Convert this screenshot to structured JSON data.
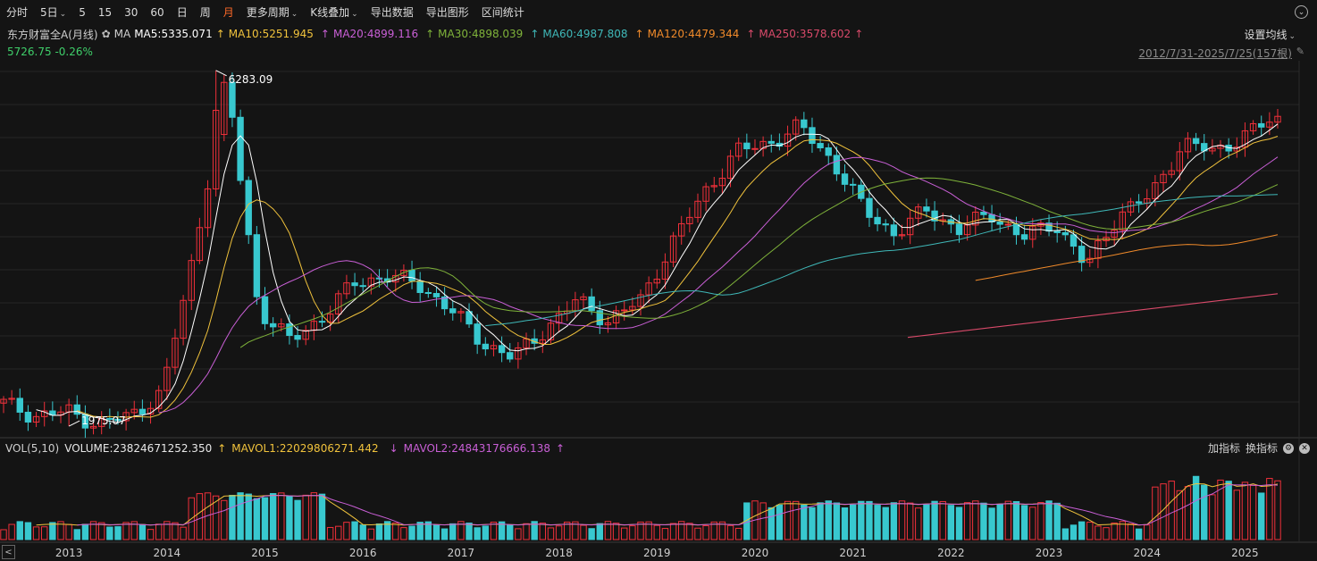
{
  "toolbar": {
    "items": [
      "分时",
      "5日",
      "5",
      "15",
      "30",
      "60",
      "日",
      "周",
      "月",
      "更多周期",
      "K线叠加",
      "导出数据",
      "导出图形",
      "区间统计"
    ],
    "active": "月"
  },
  "legend": {
    "title": "东方财富全A(月线)",
    "ma_label": "MA",
    "ma5": "MA5:5335.071",
    "ma10": "MA10:5251.945",
    "ma20": "MA20:4899.116",
    "ma30": "MA30:4898.039",
    "ma60": "MA60:4987.808",
    "ma120": "MA120:4479.344",
    "ma250": "MA250:3578.602",
    "up_arrow": "↑",
    "down_arrow": "↓",
    "settings": "设置均线"
  },
  "quote": {
    "price": "5726.75",
    "change": "-0.26%"
  },
  "range_label": "2012/7/31-2025/7/25(157根)",
  "volume_legend": {
    "vol": "VOL(5,10)",
    "volume": "VOLUME:23824671252.350",
    "mavol1": "MAVOL1:22029806271.442",
    "mavol2": "MAVOL2:24843176666.138",
    "add": "加指标",
    "switch": "换指标"
  },
  "colors": {
    "up": "#f0303a",
    "down": "#38c8cf",
    "ma5": "#ffffff",
    "ma10": "#f0c23c",
    "ma20": "#c95fd6",
    "ma30": "#7fb33a",
    "ma60": "#3fb8b8",
    "ma120": "#f08a2a",
    "ma250": "#d94a6a",
    "price": "#3fcf6a"
  },
  "chart_data": {
    "type": "candlestick",
    "title": "东方财富全A(月线)",
    "period": "monthly",
    "x_labels": [
      "2013",
      "2014",
      "2015",
      "2016",
      "2017",
      "2018",
      "2019",
      "2020",
      "2021",
      "2022",
      "2023",
      "2024",
      "2025"
    ],
    "annotations": [
      {
        "label": "6283.09",
        "value": 6283.09,
        "kind": "high"
      },
      {
        "label": "1975.07",
        "value": 1975.07,
        "kind": "low"
      }
    ],
    "last_close": 5726.75,
    "change_pct": -0.26,
    "ylim": [
      1900,
      6400
    ],
    "close_series_yearly": [
      {
        "year": "2013",
        "close": 2100
      },
      {
        "year": "2014",
        "close": 2150
      },
      {
        "year": "2015",
        "close": 4200
      },
      {
        "year": "2016",
        "close": 3400
      },
      {
        "year": "2017",
        "close": 3800
      },
      {
        "year": "2018",
        "close": 2950
      },
      {
        "year": "2019",
        "close": 3500
      },
      {
        "year": "2020",
        "close": 4700
      },
      {
        "year": "2021",
        "close": 5300
      },
      {
        "year": "2022",
        "close": 4600
      },
      {
        "year": "2023",
        "close": 4450
      },
      {
        "year": "2024",
        "close": 4750
      },
      {
        "year": "2025",
        "close": 5726.75
      }
    ],
    "volume_pane": {
      "series": [
        "VOLUME",
        "MAVOL1",
        "MAVOL2"
      ]
    }
  }
}
